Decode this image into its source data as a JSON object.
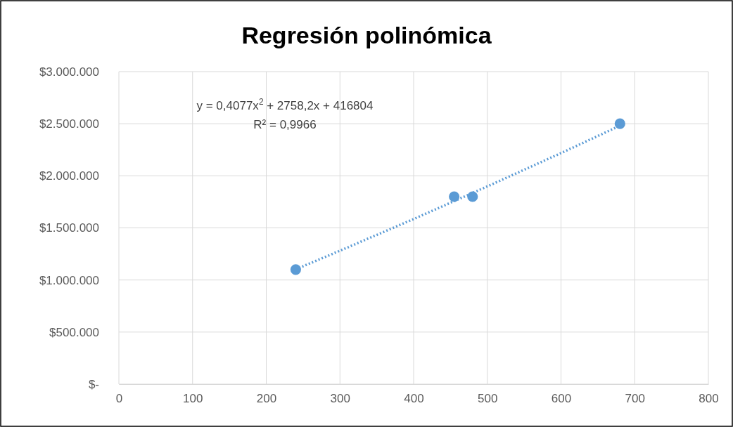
{
  "chart_data": {
    "type": "scatter",
    "title": "Regresión polinómica",
    "xlim": [
      0,
      800
    ],
    "xticks": [
      0,
      100,
      200,
      300,
      400,
      500,
      600,
      700,
      800
    ],
    "ylim": [
      0,
      3000000
    ],
    "yticks": [
      {
        "value": 0,
        "label": "$-"
      },
      {
        "value": 500000,
        "label": "$500.000"
      },
      {
        "value": 1000000,
        "label": "$1.000.000"
      },
      {
        "value": 1500000,
        "label": "$1.500.000"
      },
      {
        "value": 2000000,
        "label": "$2.000.000"
      },
      {
        "value": 2500000,
        "label": "$2.500.000"
      },
      {
        "value": 3000000,
        "label": "$3.000.000"
      }
    ],
    "grid": true,
    "legend": false,
    "marker": "circle",
    "series": [
      {
        "type": "line",
        "line_style": "dotted",
        "marker": "none",
        "color": "#5b9bd5",
        "x": [
          240,
          300,
          400,
          500,
          600,
          680
        ],
        "values": [
          1102000,
          1281000,
          1585000,
          1898000,
          2218000,
          2481000
        ]
      },
      {
        "color": "#5b9bd5",
        "x": [
          240,
          455,
          480,
          680
        ],
        "values": [
          1100000,
          1800000,
          1800000,
          2500000
        ]
      }
    ],
    "annotations": [
      "y = 0,4077x$^{2}$ + 2758,2x + 416804",
      "R² = 0,9966"
    ]
  }
}
